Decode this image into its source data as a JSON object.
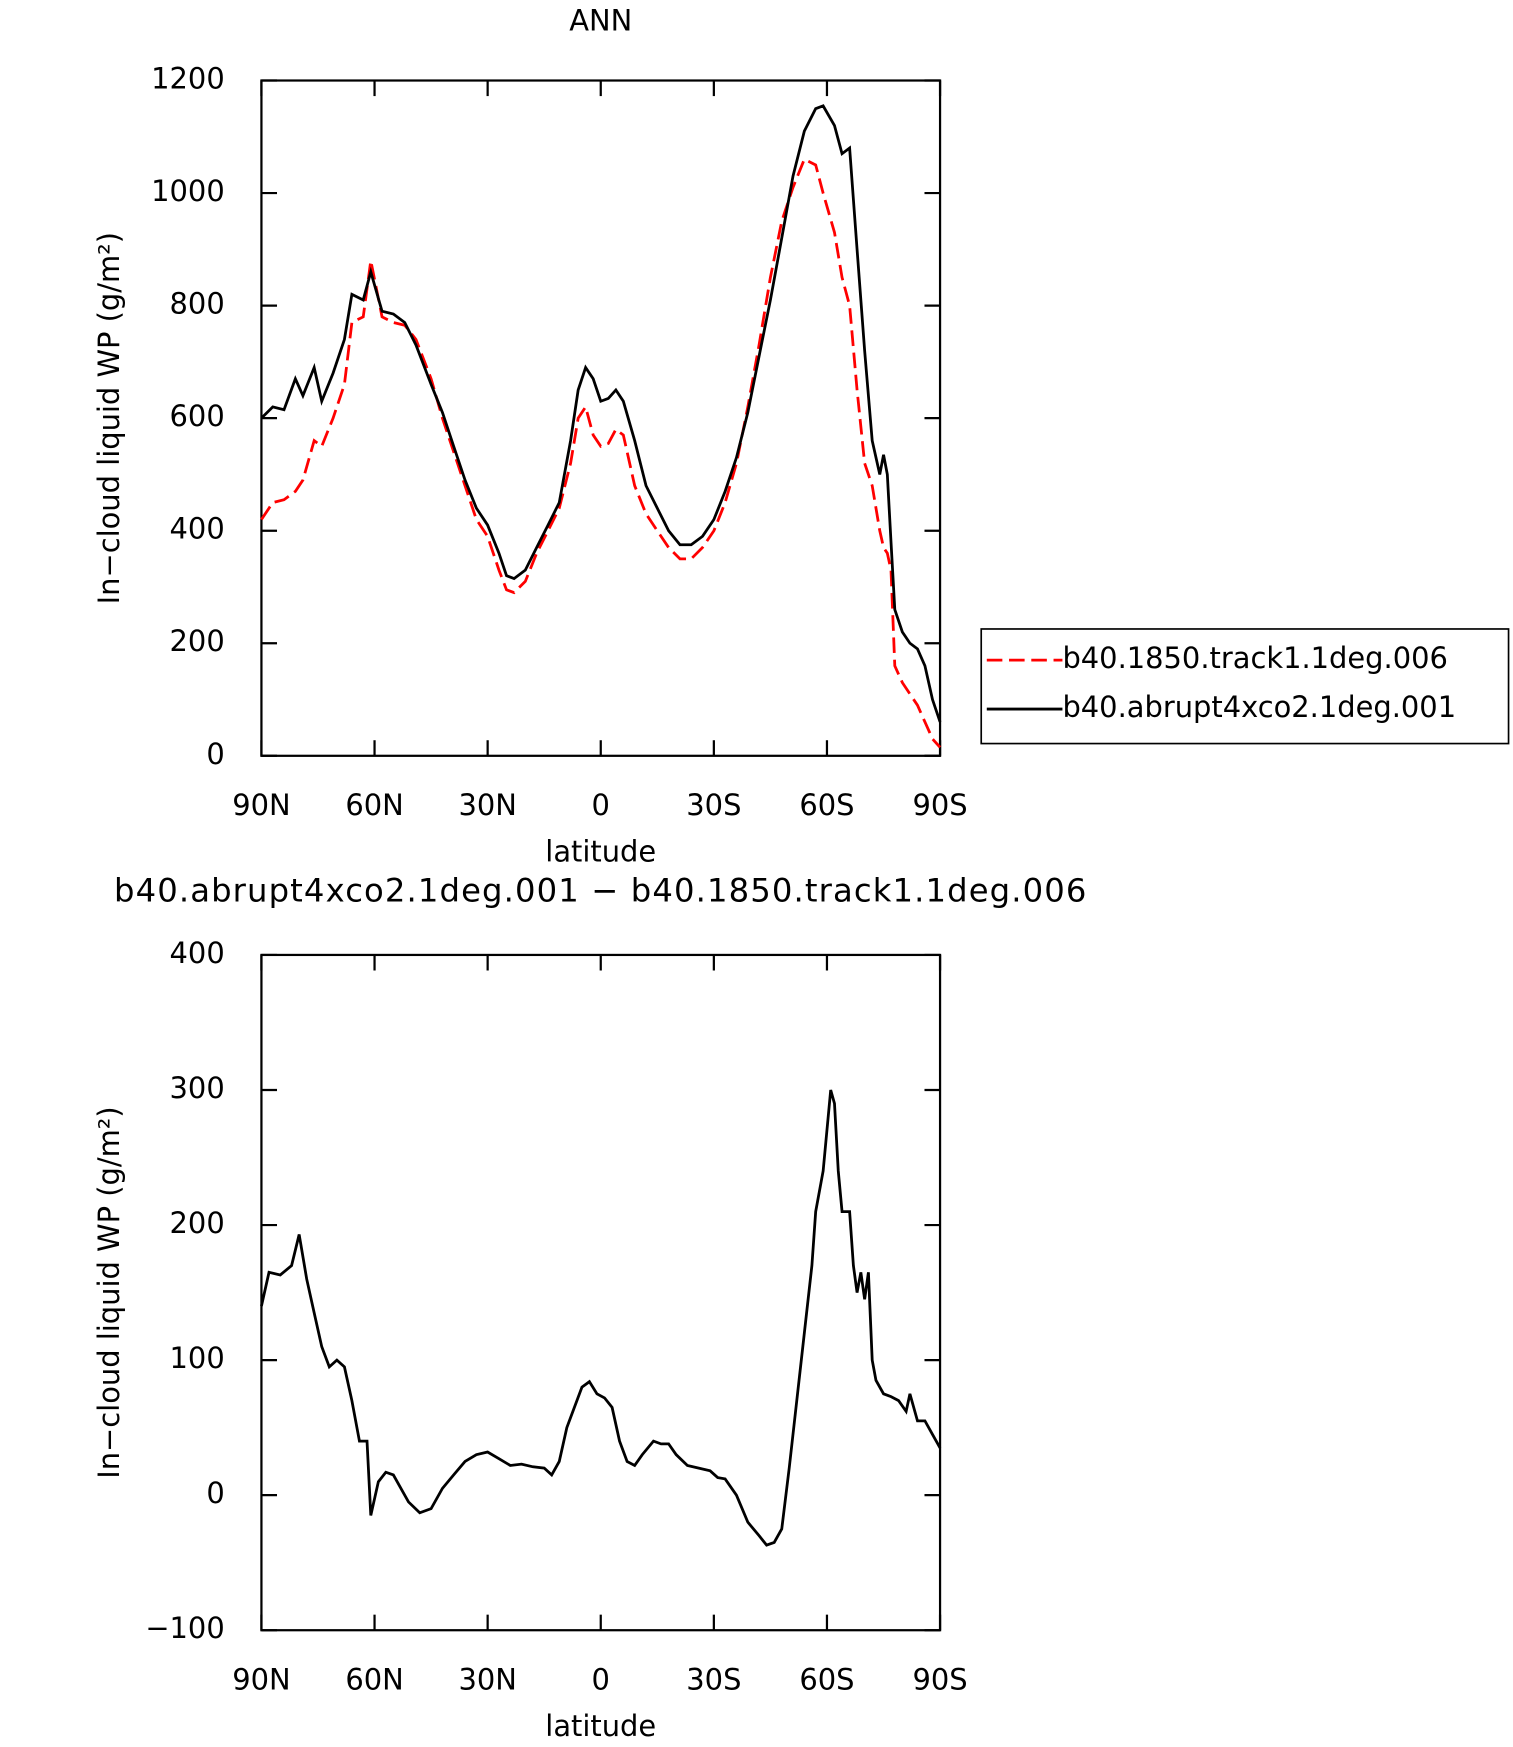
{
  "chart_data": [
    {
      "type": "line",
      "title": "ANN",
      "xlabel": "latitude",
      "ylabel": "In−cloud liquid WP (g/m²)",
      "x": [
        90,
        87,
        84,
        81,
        79,
        76,
        74,
        71,
        68,
        66,
        63,
        61,
        58,
        55,
        52,
        49,
        45,
        42,
        39,
        36,
        33,
        30,
        27,
        25,
        23,
        20,
        17,
        14,
        11,
        8,
        6,
        4,
        2,
        0,
        -2,
        -4,
        -6,
        -9,
        -12,
        -15,
        -18,
        -21,
        -24,
        -27,
        -30,
        -33,
        -36,
        -39,
        -42,
        -45,
        -48,
        -51,
        -54,
        -57,
        -59,
        -62,
        -64,
        -66,
        -68,
        -70,
        -72,
        -74,
        -75,
        -76,
        -77,
        -78,
        -80,
        -82,
        -84,
        -86,
        -88,
        -90
      ],
      "series": [
        {
          "name": "b40.1850.track1.1deg.006",
          "color": "#ff0000",
          "style": "dashed",
          "values": [
            420,
            450,
            455,
            470,
            490,
            560,
            550,
            600,
            660,
            770,
            780,
            880,
            780,
            770,
            765,
            740,
            670,
            600,
            540,
            480,
            420,
            390,
            330,
            295,
            290,
            310,
            360,
            400,
            440,
            520,
            600,
            620,
            570,
            550,
            555,
            580,
            570,
            480,
            430,
            400,
            370,
            350,
            350,
            370,
            400,
            450,
            520,
            620,
            730,
            850,
            950,
            1010,
            1060,
            1050,
            1000,
            930,
            850,
            800,
            650,
            520,
            480,
            400,
            370,
            360,
            330,
            160,
            130,
            110,
            90,
            60,
            30,
            15
          ]
        },
        {
          "name": "b40.abrupt4xco2.1deg.001",
          "color": "#000000",
          "style": "solid",
          "values": [
            600,
            620,
            615,
            670,
            640,
            690,
            630,
            680,
            740,
            820,
            810,
            860,
            790,
            785,
            770,
            730,
            660,
            610,
            550,
            490,
            440,
            410,
            360,
            320,
            315,
            330,
            370,
            410,
            450,
            560,
            650,
            690,
            670,
            630,
            635,
            650,
            630,
            560,
            480,
            440,
            400,
            375,
            375,
            390,
            420,
            470,
            530,
            610,
            710,
            810,
            920,
            1030,
            1110,
            1150,
            1155,
            1120,
            1070,
            1080,
            900,
            720,
            560,
            500,
            535,
            500,
            380,
            260,
            220,
            200,
            190,
            160,
            100,
            60
          ]
        }
      ],
      "xlim": [
        90,
        -90
      ],
      "xticks": [
        {
          "value": 90,
          "label": "90N"
        },
        {
          "value": 60,
          "label": "60N"
        },
        {
          "value": 30,
          "label": "30N"
        },
        0,
        {
          "value": -30,
          "label": "30S"
        },
        {
          "value": -60,
          "label": "60S"
        },
        {
          "value": -90,
          "label": "90S"
        }
      ],
      "ylim": [
        0,
        1200
      ],
      "yticks": [
        0,
        200,
        400,
        600,
        800,
        1000,
        1200
      ],
      "legend": "right"
    },
    {
      "type": "line",
      "title": "b40.abrupt4xco2.1deg.001 − b40.1850.track1.1deg.006",
      "xlabel": "latitude",
      "ylabel": "In−cloud liquid WP (g/m²)",
      "x": [
        90,
        88,
        85,
        82,
        80,
        78,
        76,
        74,
        72,
        70,
        68,
        66,
        64,
        62,
        61,
        59,
        57,
        55,
        53,
        51,
        48,
        45,
        42,
        39,
        36,
        33,
        30,
        27,
        24,
        21,
        18,
        15,
        13,
        11,
        9,
        7,
        5,
        3,
        1,
        -1,
        -3,
        -5,
        -7,
        -9,
        -11,
        -14,
        -16,
        -18,
        -20,
        -23,
        -26,
        -29,
        -31,
        -33,
        -36,
        -39,
        -42,
        -44,
        -46,
        -48,
        -50,
        -52,
        -54,
        -56,
        -57,
        -59,
        -61,
        -62,
        -63,
        -64,
        -66,
        -67,
        -68,
        -69,
        -70,
        -71,
        -72,
        -73,
        -75,
        -77,
        -79,
        -81,
        -82,
        -84,
        -86,
        -88,
        -90
      ],
      "series": [
        {
          "color": "#000000",
          "style": "solid",
          "values": [
            140,
            165,
            163,
            170,
            193,
            160,
            135,
            110,
            95,
            100,
            95,
            70,
            40,
            40,
            -15,
            10,
            17,
            15,
            5,
            -5,
            -13,
            -10,
            5,
            15,
            25,
            30,
            32,
            27,
            22,
            23,
            21,
            20,
            15,
            25,
            50,
            65,
            80,
            84,
            75,
            72,
            65,
            40,
            25,
            22,
            30,
            40,
            38,
            38,
            30,
            22,
            20,
            18,
            13,
            12,
            0,
            -20,
            -30,
            -37,
            -35,
            -25,
            20,
            70,
            120,
            170,
            210,
            240,
            300,
            290,
            240,
            210,
            210,
            170,
            150,
            165,
            145,
            165,
            100,
            85,
            75,
            73,
            70,
            62,
            75,
            55,
            55,
            45,
            35
          ]
        }
      ],
      "xlim": [
        90,
        -90
      ],
      "xticks": [
        {
          "value": 90,
          "label": "90N"
        },
        {
          "value": 60,
          "label": "60N"
        },
        {
          "value": 30,
          "label": "30N"
        },
        0,
        {
          "value": -30,
          "label": "30S"
        },
        {
          "value": -60,
          "label": "60S"
        },
        {
          "value": -90,
          "label": "90S"
        }
      ],
      "ylim": [
        -100,
        400
      ],
      "yticks": [
        {
          "value": -100,
          "label": "−100"
        },
        0,
        100,
        200,
        300,
        400
      ]
    }
  ]
}
